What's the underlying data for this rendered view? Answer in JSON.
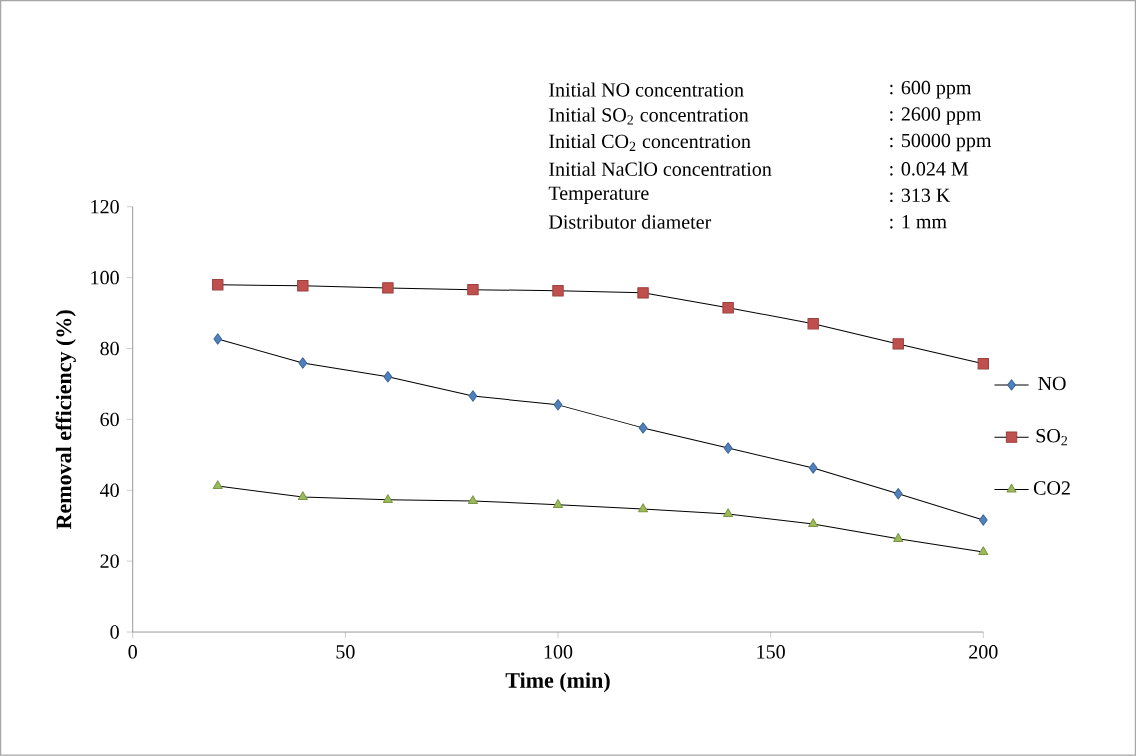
{
  "chart_data": {
    "type": "line",
    "xlabel": "Time (min)",
    "ylabel": "Removal efficiency (%)",
    "x": [
      20,
      40,
      60,
      80,
      100,
      120,
      140,
      160,
      180,
      200
    ],
    "xlim": [
      0,
      200
    ],
    "xticks": [
      0,
      50,
      100,
      150,
      200
    ],
    "ylim": [
      0,
      120
    ],
    "yticks": [
      0,
      20,
      40,
      60,
      80,
      100,
      120
    ],
    "grid": false,
    "legend": "right",
    "series": [
      {
        "name": "NO",
        "color": "#4f81bd",
        "marker": "diamond",
        "values": [
          82.7,
          75.9,
          72.0,
          66.6,
          64.1,
          57.6,
          51.9,
          46.3,
          39.0,
          31.6
        ]
      },
      {
        "name": "SO$_{2}$",
        "color": "#c0504d",
        "marker": "square",
        "values": [
          98.0,
          97.7,
          97.1,
          96.6,
          96.3,
          95.7,
          91.5,
          87.0,
          81.3,
          75.7
        ]
      },
      {
        "name": "CO2",
        "color": "#9bbb59",
        "marker": "triangle",
        "values": [
          41.2,
          38.1,
          37.3,
          37.0,
          35.9,
          34.7,
          33.3,
          30.5,
          26.3,
          22.6
        ]
      }
    ],
    "annotations": [
      "Initial NO concentration",
      ": 600 ppm",
      "Initial SO$_{2}$ concentration",
      ": 2600 ppm",
      "Initial CO$_{2}$ concentration",
      ": 50000 ppm",
      "Initial NaClO concentration",
      ": 0.024 M",
      "Temperature",
      ": 313 K",
      "Distributor diameter",
      ": 1 mm"
    ]
  }
}
